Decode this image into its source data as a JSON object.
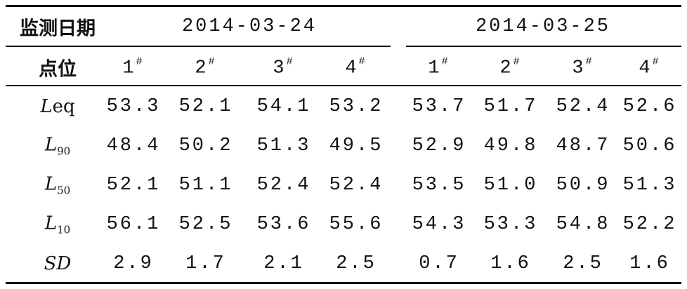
{
  "header": {
    "date_label": "监测日期",
    "dates": [
      "2014-03-24",
      "2014-03-25"
    ],
    "point_label": "点位",
    "points": [
      {
        "main": "1",
        "sup": "#"
      },
      {
        "main": "2",
        "sup": "#"
      },
      {
        "main": "3",
        "sup": "#"
      },
      {
        "main": "4",
        "sup": "#"
      },
      {
        "main": "1",
        "sup": "#"
      },
      {
        "main": "2",
        "sup": "#"
      },
      {
        "main": "3",
        "sup": "#"
      },
      {
        "main": "4",
        "sup": "#"
      }
    ]
  },
  "rows": [
    {
      "label": {
        "italic": "L",
        "rest": "eq"
      },
      "values": [
        "53.3",
        "52.1",
        "54.1",
        "53.2",
        "53.7",
        "51.7",
        "52.4",
        "52.6"
      ]
    },
    {
      "label": {
        "italic": "L",
        "sub": "90"
      },
      "values": [
        "48.4",
        "50.2",
        "51.3",
        "49.5",
        "52.9",
        "49.8",
        "48.7",
        "50.6"
      ]
    },
    {
      "label": {
        "italic": "L",
        "sub": "50"
      },
      "values": [
        "52.1",
        "51.1",
        "52.4",
        "52.4",
        "53.5",
        "51.0",
        "50.9",
        "51.3"
      ]
    },
    {
      "label": {
        "italic": "L",
        "sub": "10"
      },
      "values": [
        "56.1",
        "52.5",
        "53.6",
        "55.6",
        "54.3",
        "53.3",
        "54.8",
        "52.2"
      ]
    },
    {
      "label": {
        "italic": "SD"
      },
      "values": [
        "2.9",
        "1.7",
        "2.1",
        "2.5",
        "0.7",
        "1.6",
        "2.5",
        "1.6"
      ]
    }
  ]
}
